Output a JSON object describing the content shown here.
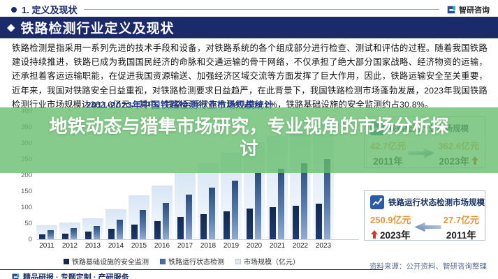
{
  "header": {
    "section_label": "1. 定义及现状",
    "logo_text": "智研咨询"
  },
  "banner": {
    "bullet": "◆",
    "title": "铁路检测行业定义及现状"
  },
  "paragraph": "铁路检测是指采用一系列先进的技术手段和设备，对铁路系统的各个组成部分进行检查、测试和评估的过程。随着我国铁路建设持续推进，铁路已成为我国国民经济的命脉和交通运输的骨干网络，不仅承担了绝大部分国家战略、经济物资的运输，还承担着客运运输职能，在促进我国资源输送、加强经济区域交流等方面发挥了巨大作用，因此，铁路运输安全至关重要，近年来，我国对铁路安全日益重视，对铁路检测要求日益趋严，在此背景下，我国铁路检测市场蓬勃发展，2023年我国铁路检测行业市场规模达362.6亿元，其中，铁路运行状态检测约占69.2%，铁路基础设施的安全监测约占30.8%。",
  "overlay": {
    "title": "地铁动态与猎隼市场研究，专业视角的市场分析探讨"
  },
  "chart_data": {
    "type": "bar",
    "title": "2011-2023年中国铁路检测行业市场规模统计",
    "categories": [
      "2011",
      "2012",
      "2013",
      "2014",
      "2015",
      "2016",
      "2017",
      "2018",
      "2019",
      "2020",
      "2021",
      "2022",
      "2023"
    ],
    "series": [
      {
        "name": "铁路基础设施的安全监测",
        "color": "#16294f",
        "values": [
          15,
          18,
          23,
          32,
          46,
          56,
          69,
          78,
          87,
          96,
          101,
          105,
          111.7
        ]
      },
      {
        "name": "铁路运行状态检测",
        "color": "#4a6fa5",
        "values": [
          27.7,
          34,
          42,
          61,
          91,
          112,
          139,
          160,
          183,
          207,
          220,
          236,
          250.9
        ]
      },
      {
        "name": "市场规模（亿元）",
        "color": "#dce9f6",
        "values": [
          42.7,
          52,
          65,
          93,
          137,
          168,
          208,
          238,
          270,
          303,
          322,
          341,
          362.6
        ]
      }
    ],
    "ylim": [
      0,
      400
    ],
    "ytick_step": 50,
    "grid": false,
    "legend_position": "bottom"
  },
  "cards": [
    {
      "title": "铁路检测行业市场规模",
      "value_left": "42.7亿元",
      "year_left": "2011年",
      "value_right": "362.6亿元",
      "year_right": "2023年"
    },
    {
      "title": "铁路运行状态检测市场规模",
      "value_left": "250.9亿元",
      "year_left": "2023年",
      "value_right": "27.7亿元",
      "year_right": "2011年"
    }
  ],
  "source_note": "资料来源：公开资料、智研咨询整理",
  "footer": {
    "logo_text": "精品研报 · 专题定制 · 产研服务"
  },
  "colors": {
    "navy": "#1b2a6b",
    "overlay_green": "#68be6e",
    "value_orange": "#e8953a",
    "up_arrow_red": "#d23b2a",
    "chart_title_blue": "#1f3a93"
  }
}
